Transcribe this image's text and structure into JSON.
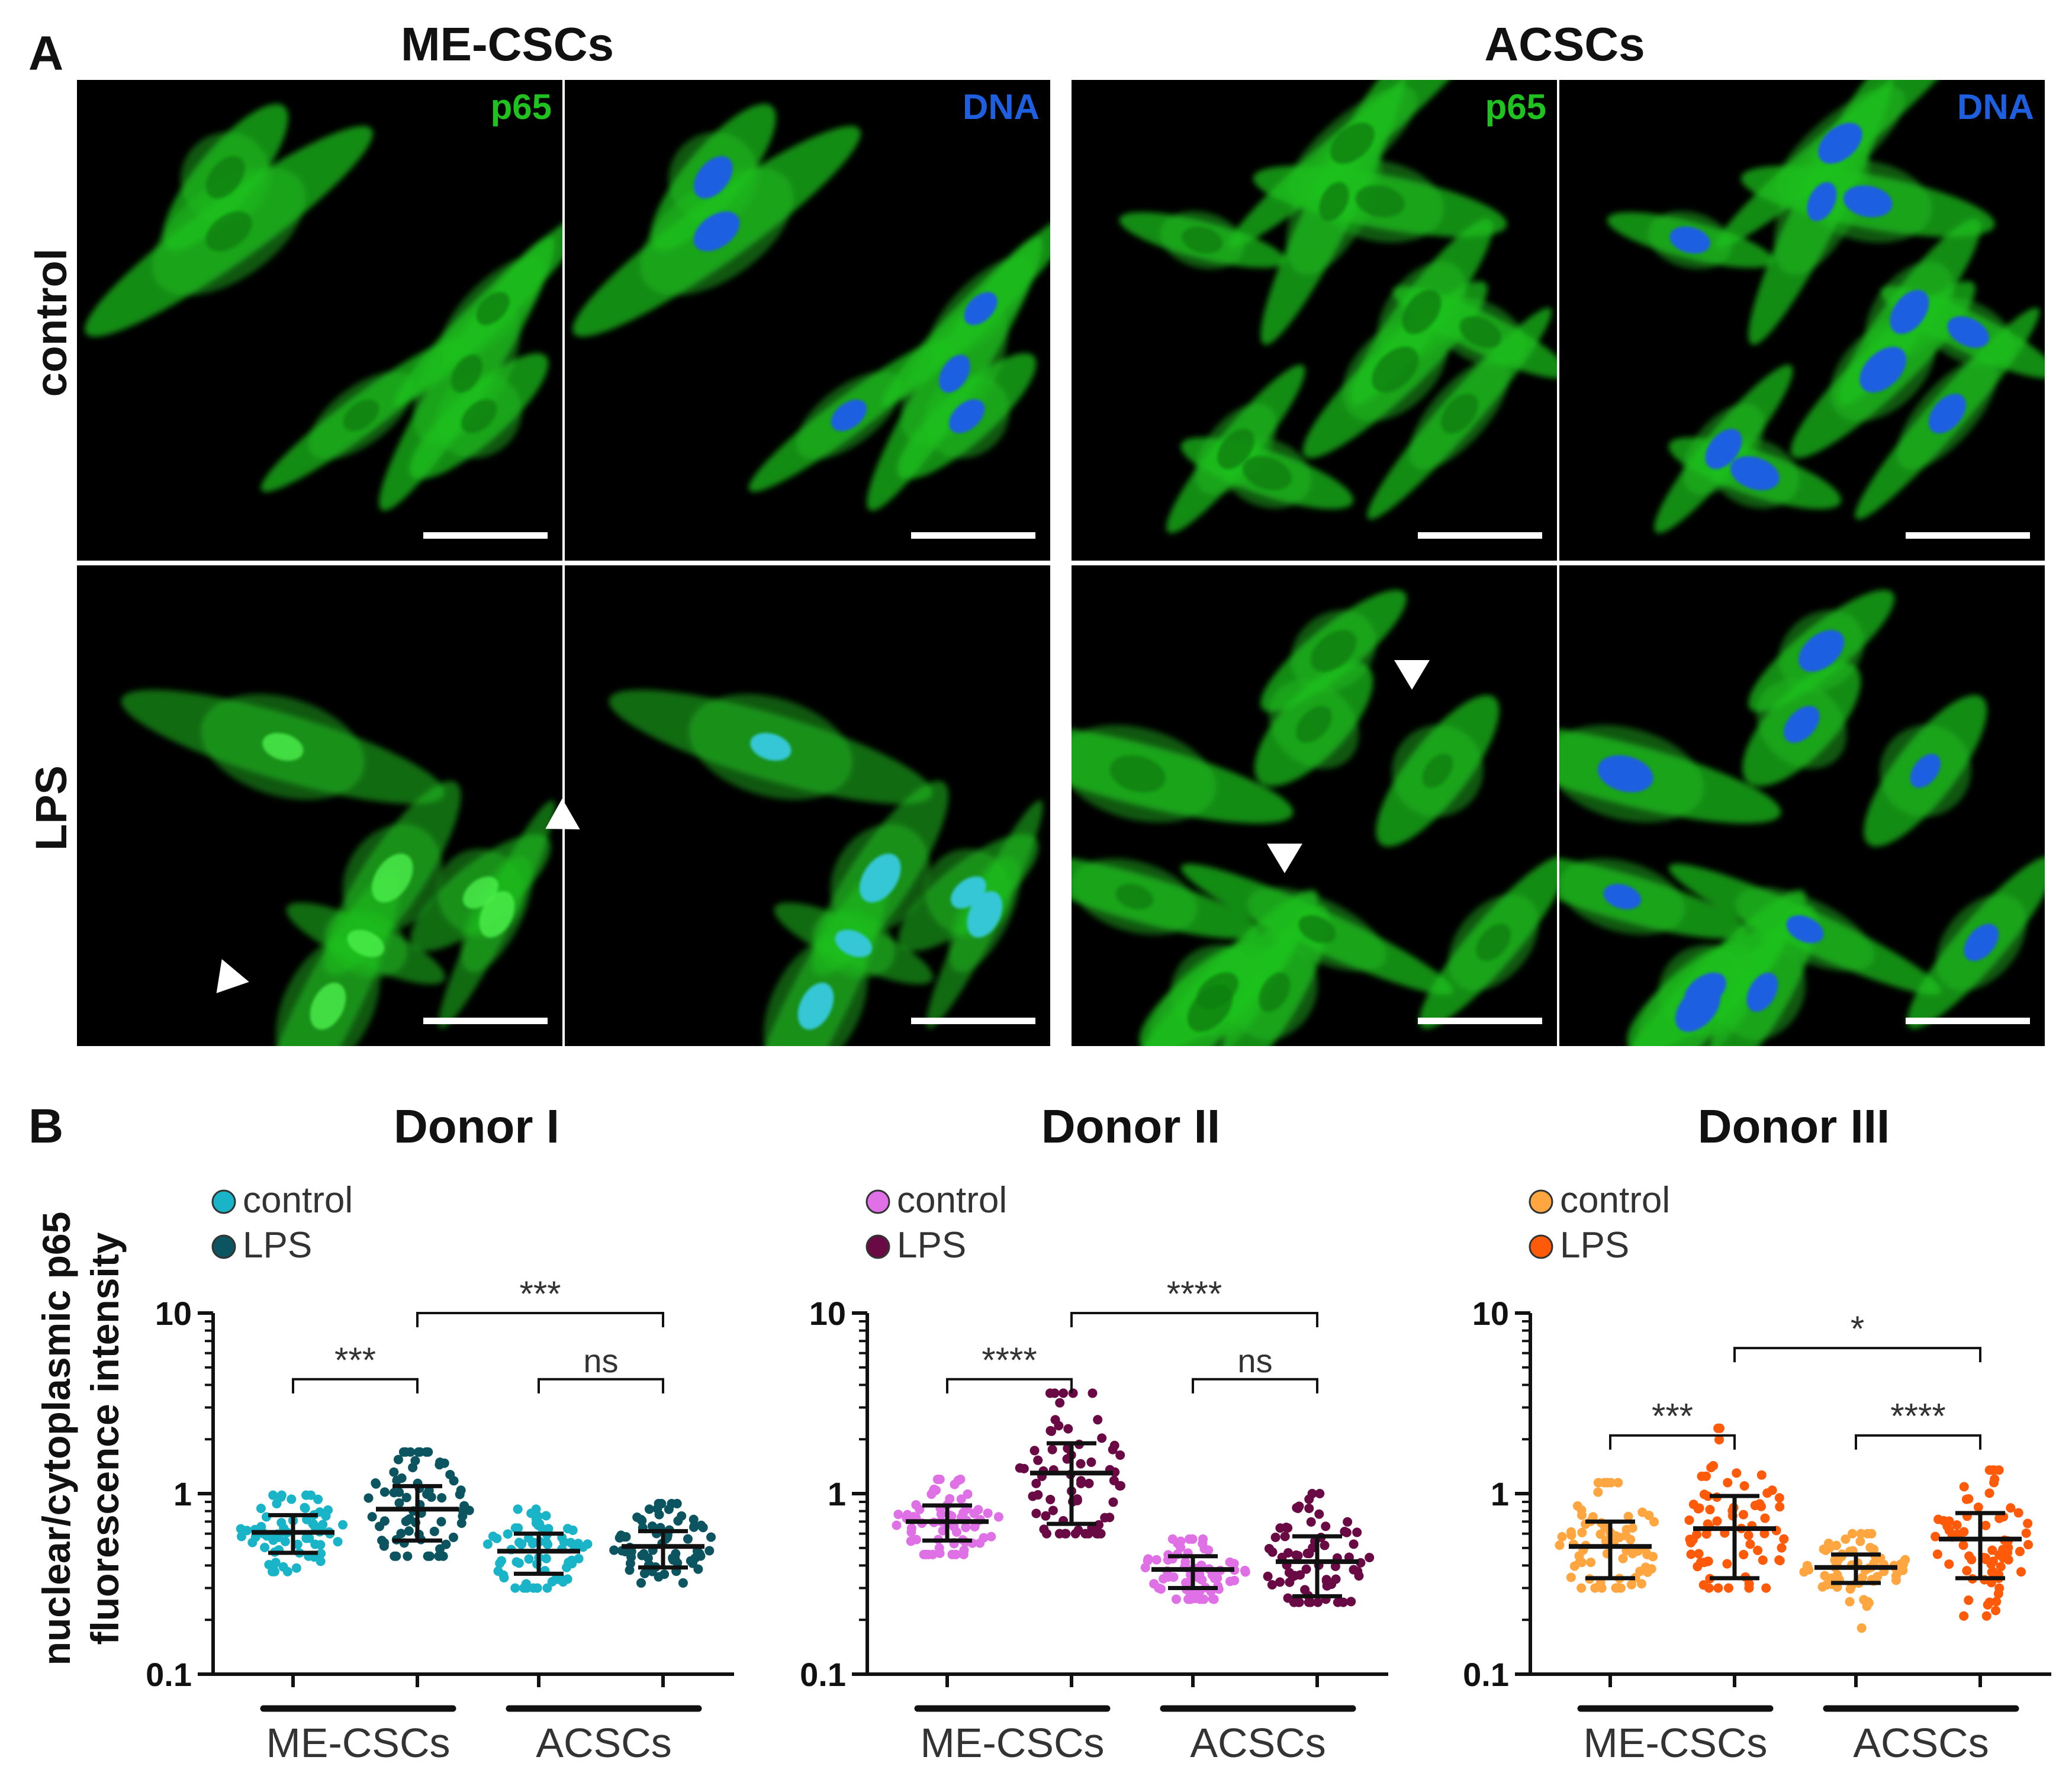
{
  "panel_a": {
    "label": "A",
    "column_titles": [
      "ME-CSCs",
      "ACSCs"
    ],
    "row_labels": [
      "control",
      "LPS"
    ],
    "channel_labels": [
      "p65",
      "DNA"
    ],
    "colors": {
      "p65": "#1fc21f",
      "dna": "#1e5fe0",
      "background": "#000000",
      "scale_bar": "#ffffff"
    }
  },
  "panel_b": {
    "label": "B",
    "y_axis_title": [
      "nuclear/cytoplasmic p65",
      "fluorescence intensity"
    ]
  },
  "chart_data": [
    {
      "type": "scatter",
      "title": "Donor I",
      "ylabel": "nuclear/cytoplasmic p65 fluorescence intensity",
      "yscale": "log",
      "ylim": [
        0.1,
        10
      ],
      "yticks": [
        "0.1",
        "1",
        "10"
      ],
      "groups": [
        "ME-CSCs",
        "ACSCs"
      ],
      "legend": [
        {
          "label": "control",
          "color": "#1ab4c8"
        },
        {
          "label": "LPS",
          "color": "#0c5560"
        }
      ],
      "series": [
        {
          "group": "ME-CSCs",
          "condition": "control",
          "color": "#1ab4c8",
          "median": 0.61,
          "q1": 0.47,
          "q3": 0.76,
          "min": 0.37,
          "max": 0.98
        },
        {
          "group": "ME-CSCs",
          "condition": "LPS",
          "color": "#0c5560",
          "median": 0.82,
          "q1": 0.55,
          "q3": 1.1,
          "min": 0.45,
          "max": 1.7
        },
        {
          "group": "ACSCs",
          "condition": "control",
          "color": "#1ab4c8",
          "median": 0.48,
          "q1": 0.36,
          "q3": 0.6,
          "min": 0.3,
          "max": 0.82
        },
        {
          "group": "ACSCs",
          "condition": "LPS",
          "color": "#0c5560",
          "median": 0.51,
          "q1": 0.39,
          "q3": 0.62,
          "min": 0.32,
          "max": 0.88
        }
      ],
      "comparisons": [
        {
          "from": 0,
          "to": 1,
          "label": "***",
          "y": 4.3
        },
        {
          "from": 1,
          "to": 3,
          "label": "***",
          "y": 10
        },
        {
          "from": 2,
          "to": 3,
          "label": "ns",
          "y": 4.3
        }
      ]
    },
    {
      "type": "scatter",
      "title": "Donor II",
      "ylabel": "nuclear/cytoplasmic p65 fluorescence intensity",
      "yscale": "log",
      "ylim": [
        0.1,
        10
      ],
      "yticks": [
        "0.1",
        "1",
        "10"
      ],
      "groups": [
        "ME-CSCs",
        "ACSCs"
      ],
      "legend": [
        {
          "label": "control",
          "color": "#e070e6"
        },
        {
          "label": "LPS",
          "color": "#6a0a45"
        }
      ],
      "series": [
        {
          "group": "ME-CSCs",
          "condition": "control",
          "color": "#e070e6",
          "median": 0.7,
          "q1": 0.55,
          "q3": 0.86,
          "min": 0.46,
          "max": 1.2
        },
        {
          "group": "ME-CSCs",
          "condition": "LPS",
          "color": "#6a0a45",
          "median": 1.3,
          "q1": 0.68,
          "q3": 1.9,
          "min": 0.6,
          "max": 3.6
        },
        {
          "group": "ACSCs",
          "condition": "control",
          "color": "#e070e6",
          "median": 0.38,
          "q1": 0.3,
          "q3": 0.45,
          "min": 0.26,
          "max": 0.56
        },
        {
          "group": "ACSCs",
          "condition": "LPS",
          "color": "#6a0a45",
          "median": 0.42,
          "q1": 0.27,
          "q3": 0.58,
          "min": 0.25,
          "max": 1.0
        }
      ],
      "comparisons": [
        {
          "from": 0,
          "to": 1,
          "label": "****",
          "y": 4.3
        },
        {
          "from": 1,
          "to": 3,
          "label": "****",
          "y": 10
        },
        {
          "from": 2,
          "to": 3,
          "label": "ns",
          "y": 4.3
        }
      ]
    },
    {
      "type": "scatter",
      "title": "Donor III",
      "ylabel": "nuclear/cytoplasmic p65 fluorescence intensity",
      "yscale": "log",
      "ylim": [
        0.1,
        10
      ],
      "yticks": [
        "0.1",
        "1",
        "10"
      ],
      "groups": [
        "ME-CSCs",
        "ACSCs"
      ],
      "legend": [
        {
          "label": "control",
          "color": "#ffa640"
        },
        {
          "label": "LPS",
          "color": "#ff5a0a"
        }
      ],
      "series": [
        {
          "group": "ME-CSCs",
          "condition": "control",
          "color": "#ffa640",
          "median": 0.51,
          "q1": 0.34,
          "q3": 0.7,
          "min": 0.3,
          "max": 1.15
        },
        {
          "group": "ME-CSCs",
          "condition": "LPS",
          "color": "#ff5a0a",
          "median": 0.64,
          "q1": 0.34,
          "q3": 0.97,
          "min": 0.3,
          "max": 2.3
        },
        {
          "group": "ACSCs",
          "condition": "control",
          "color": "#ffa640",
          "median": 0.39,
          "q1": 0.32,
          "q3": 0.46,
          "min": 0.18,
          "max": 0.6
        },
        {
          "group": "ACSCs",
          "condition": "LPS",
          "color": "#ff5a0a",
          "median": 0.56,
          "q1": 0.34,
          "q3": 0.78,
          "min": 0.21,
          "max": 1.35
        }
      ],
      "comparisons": [
        {
          "from": 0,
          "to": 1,
          "label": "***",
          "y": 2.1
        },
        {
          "from": 1,
          "to": 3,
          "label": "*",
          "y": 6.4
        },
        {
          "from": 2,
          "to": 3,
          "label": "****",
          "y": 2.1
        }
      ]
    }
  ]
}
